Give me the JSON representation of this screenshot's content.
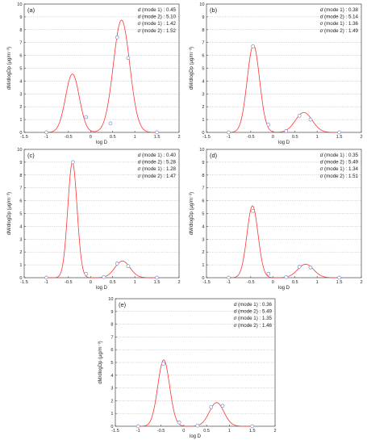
{
  "chart_data": [
    {
      "type": "line",
      "panel_label": "(a)",
      "xlabel": "log D",
      "ylabel": "dM/dlogDp (μg/m⁻³)",
      "xlim": [
        -1.5,
        2
      ],
      "ylim": [
        0,
        10
      ],
      "xticks": [
        "-1.5",
        "-1",
        "-0.5",
        "0",
        "0.5",
        "1",
        "1.5",
        "2"
      ],
      "yticks": [
        "0",
        "1",
        "2",
        "3",
        "4",
        "5",
        "6",
        "7",
        "8",
        "9",
        "10"
      ],
      "grid": "horizontal-dotted",
      "annotations": [
        {
          "sym": "d",
          "text": " (mode 1) : 0.45"
        },
        {
          "sym": "d",
          "text": " (mode 2) : 5.10"
        },
        {
          "sym": "σ",
          "text": " (mode 1) : 1.42"
        },
        {
          "sym": "σ",
          "text": " (mode 2) : 1.52"
        }
      ],
      "curve": {
        "color": "#ff3333",
        "modes": [
          {
            "amp": 4.55,
            "center": -0.41,
            "width": 0.155
          },
          {
            "amp": 8.75,
            "center": 0.7,
            "width": 0.185
          }
        ]
      },
      "points": {
        "color": "#7a8fc4",
        "x": [
          -1.0,
          -0.1,
          0.45,
          0.6,
          0.85,
          1.5
        ],
        "y": [
          0.0,
          1.2,
          0.7,
          7.4,
          5.8,
          0.0
        ]
      }
    },
    {
      "type": "line",
      "panel_label": "(b)",
      "xlabel": "log D",
      "ylabel": "dM/dlogDp (μg/m⁻³)",
      "xlim": [
        -1.5,
        2
      ],
      "ylim": [
        0,
        10
      ],
      "xticks": [
        "-1.5",
        "-1",
        "-0.5",
        "0",
        "0.5",
        "1",
        "1.5",
        "2"
      ],
      "yticks": [
        "0",
        "1",
        "2",
        "3",
        "4",
        "5",
        "6",
        "7",
        "8",
        "9",
        "10"
      ],
      "grid": "horizontal-dotted",
      "annotations": [
        {
          "sym": "d",
          "text": " (mode 1) : 0.38"
        },
        {
          "sym": "d",
          "text": " (mode 2) : 5.14"
        },
        {
          "sym": "σ",
          "text": " (mode 1) : 1.36"
        },
        {
          "sym": "σ",
          "text": " (mode 2) : 1.49"
        }
      ],
      "curve": {
        "color": "#ff3333",
        "modes": [
          {
            "amp": 6.8,
            "center": -0.44,
            "width": 0.14
          },
          {
            "amp": 1.55,
            "center": 0.7,
            "width": 0.19
          }
        ]
      },
      "points": {
        "color": "#7a8fc4",
        "x": [
          -1.0,
          -0.45,
          -0.1,
          0.3,
          0.6,
          0.85,
          1.5
        ],
        "y": [
          0.0,
          6.7,
          0.6,
          0.1,
          1.3,
          1.0,
          0.0
        ]
      }
    },
    {
      "type": "line",
      "panel_label": "(c)",
      "xlabel": "log D",
      "ylabel": "dM/dlogDp (μg/m⁻³)",
      "xlim": [
        -1.5,
        2
      ],
      "ylim": [
        0,
        10
      ],
      "xticks": [
        "-1.5",
        "-1",
        "-0.5",
        "0",
        "0.5",
        "1",
        "1.5",
        "2"
      ],
      "yticks": [
        "0",
        "1",
        "2",
        "3",
        "4",
        "5",
        "6",
        "7",
        "8",
        "9",
        "10"
      ],
      "grid": "horizontal-dotted",
      "annotations": [
        {
          "sym": "d",
          "text": " (mode 1) : 0.40"
        },
        {
          "sym": "d",
          "text": " (mode 2) : 5.28"
        },
        {
          "sym": "σ",
          "text": " (mode 1) : 1.28"
        },
        {
          "sym": "σ",
          "text": " (mode 2) : 1.47"
        }
      ],
      "curve": {
        "color": "#ff3333",
        "modes": [
          {
            "amp": 9.0,
            "center": -0.41,
            "width": 0.105
          },
          {
            "amp": 1.3,
            "center": 0.72,
            "width": 0.17
          }
        ]
      },
      "points": {
        "color": "#7a8fc4",
        "x": [
          -1.0,
          -0.4,
          -0.1,
          0.3,
          0.6,
          0.85,
          1.5
        ],
        "y": [
          0.0,
          9.0,
          0.3,
          0.05,
          1.1,
          0.9,
          0.0
        ]
      }
    },
    {
      "type": "line",
      "panel_label": "(d)",
      "xlabel": "log D",
      "ylabel": "dM/dlogDp (μg/m⁻³)",
      "xlim": [
        -1.5,
        2
      ],
      "ylim": [
        0,
        10
      ],
      "xticks": [
        "-1.5",
        "-1",
        "-0.5",
        "0",
        "0.5",
        "1",
        "1.5",
        "2"
      ],
      "yticks": [
        "0",
        "1",
        "2",
        "3",
        "4",
        "5",
        "6",
        "7",
        "8",
        "9",
        "10"
      ],
      "grid": "horizontal-dotted",
      "annotations": [
        {
          "sym": "d",
          "text": " (mode 1) : 0.35"
        },
        {
          "sym": "d",
          "text": " (mode 2) : 5.49"
        },
        {
          "sym": "σ",
          "text": " (mode 1) : 1.34"
        },
        {
          "sym": "σ",
          "text": " (mode 2) : 1.51"
        }
      ],
      "curve": {
        "color": "#ff3333",
        "modes": [
          {
            "amp": 5.6,
            "center": -0.46,
            "width": 0.125
          },
          {
            "amp": 1.05,
            "center": 0.74,
            "width": 0.18
          }
        ]
      },
      "points": {
        "color": "#7a8fc4",
        "x": [
          -1.0,
          -0.45,
          -0.1,
          0.3,
          0.6,
          0.85,
          1.5
        ],
        "y": [
          0.0,
          5.2,
          0.3,
          0.05,
          0.85,
          0.8,
          0.0
        ]
      }
    },
    {
      "type": "line",
      "panel_label": "(e)",
      "xlabel": "log D",
      "ylabel": "dM/dlogDp (μg/m⁻³)",
      "xlim": [
        -1.5,
        2
      ],
      "ylim": [
        0,
        10
      ],
      "xticks": [
        "-1.5",
        "-1",
        "-0.5",
        "0",
        "0.5",
        "1",
        "1.5",
        "2"
      ],
      "yticks": [
        "0",
        "1",
        "2",
        "3",
        "4",
        "5",
        "6",
        "7",
        "8",
        "9",
        "10"
      ],
      "grid": "horizontal-dotted",
      "annotations": [
        {
          "sym": "d",
          "text": " (mode 1) : 0.36"
        },
        {
          "sym": "d",
          "text": " (mode 2) : 5.49"
        },
        {
          "sym": "σ",
          "text": " (mode 1) : 1.35"
        },
        {
          "sym": "σ",
          "text": " (mode 2) : 1.46"
        }
      ],
      "curve": {
        "color": "#ff3333",
        "modes": [
          {
            "amp": 5.2,
            "center": -0.44,
            "width": 0.13
          },
          {
            "amp": 1.85,
            "center": 0.72,
            "width": 0.16
          }
        ]
      },
      "points": {
        "color": "#7a8fc4",
        "x": [
          -1.0,
          -0.45,
          -0.1,
          0.3,
          0.6,
          0.85,
          1.5
        ],
        "y": [
          0.0,
          4.9,
          0.3,
          0.05,
          1.5,
          1.6,
          0.0
        ]
      }
    }
  ]
}
